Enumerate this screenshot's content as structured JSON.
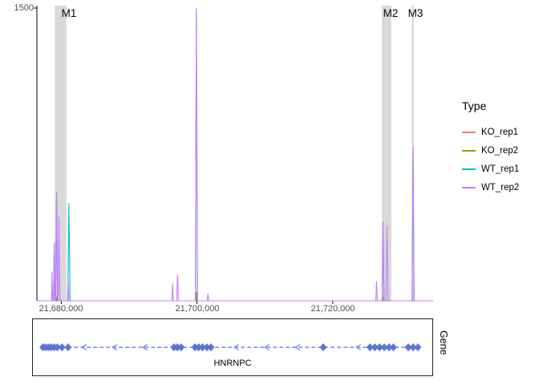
{
  "chart_data": {
    "type": "line",
    "title": "",
    "legend_title": "Type",
    "legend_position": "right",
    "y_axis": {
      "max": 1500,
      "tick_label": "1500"
    },
    "x_range": [
      21676400,
      21734800
    ],
    "x_ticks": [
      {
        "label": "21,680,000",
        "pos": 21680000
      },
      {
        "label": "21,700,000",
        "pos": 21700000
      },
      {
        "label": "21,720,000",
        "pos": 21720000
      }
    ],
    "highlight_fill": "#d9d9d9",
    "highlights": [
      {
        "name": "M1",
        "start": 21679050,
        "end": 21680750
      },
      {
        "name": "M2",
        "start": 21727250,
        "end": 21728650
      },
      {
        "name": "M3",
        "start": 21731650,
        "end": 21731950
      }
    ],
    "series": [
      {
        "name": "KO_rep1",
        "color": "#F8766D",
        "points": [
          [
            21676400,
            0
          ],
          [
            21679150,
            0
          ],
          [
            21679300,
            22
          ],
          [
            21679450,
            0
          ],
          [
            21699800,
            0
          ],
          [
            21699900,
            45
          ],
          [
            21700020,
            0
          ],
          [
            21727350,
            0
          ],
          [
            21727420,
            20
          ],
          [
            21727520,
            0
          ],
          [
            21734800,
            0
          ]
        ]
      },
      {
        "name": "KO_rep2",
        "color": "#7CAE00",
        "points": [
          [
            21676400,
            0
          ],
          [
            21679200,
            0
          ],
          [
            21679350,
            15
          ],
          [
            21679500,
            0
          ],
          [
            21699830,
            0
          ],
          [
            21699910,
            35
          ],
          [
            21700010,
            0
          ],
          [
            21734800,
            0
          ]
        ]
      },
      {
        "name": "WT_rep1",
        "color": "#00BFC4",
        "points": [
          [
            21676400,
            0
          ],
          [
            21678850,
            0
          ],
          [
            21678950,
            280
          ],
          [
            21679050,
            0
          ],
          [
            21679150,
            0
          ],
          [
            21679300,
            540
          ],
          [
            21679450,
            0
          ],
          [
            21680950,
            0
          ],
          [
            21681120,
            500
          ],
          [
            21681300,
            0
          ],
          [
            21699760,
            0
          ],
          [
            21699900,
            1480
          ],
          [
            21700070,
            0
          ],
          [
            21727280,
            0
          ],
          [
            21727420,
            390
          ],
          [
            21727570,
            0
          ],
          [
            21731700,
            0
          ],
          [
            21731850,
            760
          ],
          [
            21732000,
            0
          ],
          [
            21734800,
            0
          ]
        ]
      },
      {
        "name": "WT_rep2",
        "color": "#C77CFF",
        "points": [
          [
            21676400,
            0
          ],
          [
            21678550,
            0
          ],
          [
            21678620,
            150
          ],
          [
            21678700,
            0
          ],
          [
            21678850,
            0
          ],
          [
            21678950,
            300
          ],
          [
            21679050,
            0
          ],
          [
            21679150,
            0
          ],
          [
            21679300,
            560
          ],
          [
            21679450,
            0
          ],
          [
            21679550,
            0
          ],
          [
            21679650,
            430
          ],
          [
            21679800,
            0
          ],
          [
            21680900,
            0
          ],
          [
            21681000,
            110
          ],
          [
            21681120,
            0
          ],
          [
            21696300,
            0
          ],
          [
            21696400,
            90
          ],
          [
            21696500,
            0
          ],
          [
            21697000,
            0
          ],
          [
            21697120,
            135
          ],
          [
            21697250,
            0
          ],
          [
            21699750,
            0
          ],
          [
            21699900,
            1550
          ],
          [
            21700080,
            0
          ],
          [
            21701500,
            0
          ],
          [
            21701620,
            35
          ],
          [
            21701750,
            0
          ],
          [
            21726350,
            0
          ],
          [
            21726450,
            100
          ],
          [
            21726570,
            0
          ],
          [
            21727280,
            0
          ],
          [
            21727420,
            405
          ],
          [
            21727570,
            0
          ],
          [
            21727850,
            0
          ],
          [
            21728000,
            385
          ],
          [
            21728170,
            0
          ],
          [
            21731700,
            0
          ],
          [
            21731850,
            790
          ],
          [
            21732000,
            0
          ],
          [
            21734800,
            0
          ]
        ]
      }
    ]
  },
  "gene_track": {
    "label": "HNRNPC",
    "axis_label": "Gene",
    "strand": "-",
    "color": "#7487E8",
    "exon_color": "#5B74D8",
    "start": 21677150,
    "end": 21732850,
    "exons": [
      21677300,
      21677700,
      21678100,
      21678500,
      21678950,
      21679400,
      21680100,
      21681000,
      21696600,
      21697100,
      21697650,
      21699700,
      21700250,
      21700800,
      21701450,
      21702050,
      21718600,
      21725500,
      21726200,
      21726900,
      21727600,
      21728300,
      21728950,
      21731150,
      21731850,
      21732550
    ]
  }
}
